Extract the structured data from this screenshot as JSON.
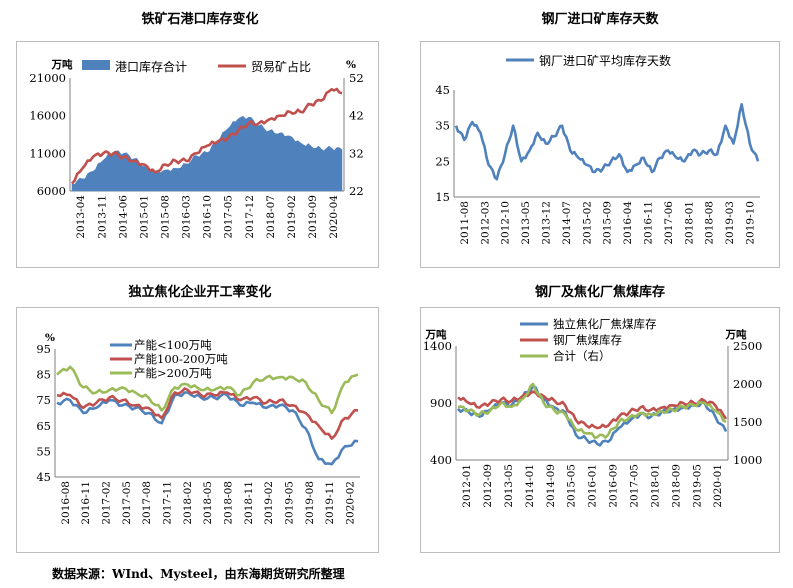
{
  "footer": "数据来源：WInd、Mysteel，由东海期货研究所整理",
  "chart_data": [
    {
      "type": "area",
      "title": "铁矿石港口库存变化",
      "y_unit_left": "万吨",
      "y_unit_right": "%",
      "ylim_left": [
        6000,
        21000
      ],
      "yticks_left": [
        "6000",
        "11000",
        "16000",
        "21000"
      ],
      "ylim_right": [
        22,
        52
      ],
      "yticks_right": [
        "22",
        "32",
        "42",
        "52"
      ],
      "xticks": [
        "2013-04",
        "2013-11",
        "2014-06",
        "2015-01",
        "2015-08",
        "2016-03",
        "2016-10",
        "2017-05",
        "2017-12",
        "2018-07",
        "2019-02",
        "2019-09",
        "2020-04"
      ],
      "legend_position": "top",
      "series": [
        {
          "name": "港口库存合计",
          "axis": "left",
          "color": "#4f81bd",
          "kind": "area",
          "values": [
            7000,
            7600,
            8600,
            10100,
            11200,
            11000,
            10300,
            9300,
            8600,
            8800,
            9000,
            9600,
            10700,
            11100,
            12700,
            14300,
            15600,
            15800,
            14700,
            14000,
            13700,
            13300,
            12400,
            12000,
            11600,
            11700,
            11500
          ]
        },
        {
          "name": "贸易矿占比",
          "axis": "right",
          "color": "#c0504d",
          "kind": "line",
          "values": [
            24,
            28,
            31,
            32,
            32,
            31,
            30,
            29,
            27,
            29,
            30,
            30,
            32,
            34,
            35,
            36,
            38,
            40,
            40,
            41,
            42,
            43,
            43,
            45,
            46,
            49,
            48
          ]
        }
      ]
    },
    {
      "type": "line",
      "title": "钢厂进口矿库存天数",
      "ylim": [
        15,
        45
      ],
      "yticks": [
        "15",
        "25",
        "35",
        "45"
      ],
      "xticks": [
        "2011-08",
        "2012-03",
        "2012-10",
        "2013-05",
        "2013-12",
        "2014-07",
        "2015-02",
        "2015-09",
        "2016-04",
        "2016-11",
        "2017-06",
        "2018-01",
        "2018-08",
        "2019-03",
        "2019-10"
      ],
      "legend_position": "top",
      "series": [
        {
          "name": "钢厂进口矿平均库存天数",
          "color": "#4f81bd",
          "values": [
            35,
            31,
            36,
            33,
            24,
            20,
            27,
            35,
            25,
            28,
            33,
            30,
            32,
            35,
            28,
            26,
            24,
            22,
            23,
            25,
            27,
            22,
            24,
            26,
            22,
            26,
            28,
            26,
            25,
            28,
            27,
            28,
            27,
            35,
            30,
            41,
            30,
            25
          ]
        }
      ]
    },
    {
      "type": "line",
      "title": "独立焦化企业开工率变化",
      "y_unit": "%",
      "ylim": [
        45,
        95
      ],
      "yticks": [
        "45",
        "55",
        "65",
        "75",
        "85",
        "95"
      ],
      "xticks": [
        "2016-08",
        "2016-11",
        "2017-02",
        "2017-05",
        "2017-08",
        "2017-11",
        "2018-02",
        "2018-05",
        "2018-08",
        "2018-11",
        "2019-02",
        "2019-05",
        "2019-08",
        "2019-11",
        "2020-02"
      ],
      "legend_position": "top-left",
      "series": [
        {
          "name": "产能<100万吨",
          "color": "#4f81bd",
          "values": [
            74,
            75,
            70,
            72,
            75,
            73,
            72,
            70,
            66,
            77,
            78,
            76,
            76,
            77,
            73,
            74,
            72,
            73,
            71,
            64,
            52,
            50,
            57,
            59
          ]
        },
        {
          "name": "产能100-200万吨",
          "color": "#c0504d",
          "values": [
            77,
            77,
            72,
            74,
            76,
            75,
            73,
            72,
            68,
            78,
            79,
            77,
            77,
            78,
            75,
            76,
            74,
            75,
            73,
            70,
            65,
            60,
            68,
            71
          ]
        },
        {
          "name": "产能>200万吨",
          "color": "#9bbb59",
          "values": [
            85,
            88,
            80,
            78,
            79,
            80,
            78,
            76,
            71,
            80,
            81,
            79,
            79,
            80,
            77,
            82,
            84,
            84,
            84,
            82,
            75,
            70,
            82,
            85
          ]
        }
      ]
    },
    {
      "type": "line",
      "title": "钢厂及焦化厂焦煤库存",
      "y_unit_left": "万吨",
      "y_unit_right": "万吨",
      "ylim_left": [
        400,
        1400
      ],
      "yticks_left": [
        "400",
        "900",
        "1400"
      ],
      "ylim_right": [
        1000,
        2500
      ],
      "yticks_right": [
        "1000",
        "1500",
        "2000",
        "2500"
      ],
      "xticks": [
        "2012-01",
        "2012-09",
        "2013-05",
        "2014-01",
        "2014-09",
        "2015-05",
        "2016-01",
        "2016-09",
        "2017-05",
        "2018-01",
        "2018-09",
        "2019-05",
        "2020-01"
      ],
      "legend_position": "top",
      "series": [
        {
          "name": "独立焦化厂焦煤库存",
          "axis": "left",
          "color": "#4f81bd",
          "values": [
            850,
            820,
            780,
            840,
            900,
            880,
            950,
            1050,
            930,
            860,
            820,
            620,
            580,
            540,
            560,
            680,
            740,
            800,
            780,
            820,
            840,
            860,
            880,
            900,
            780,
            650
          ]
        },
        {
          "name": "钢厂焦煤库存",
          "axis": "left",
          "color": "#c0504d",
          "values": [
            950,
            900,
            860,
            900,
            930,
            920,
            960,
            1000,
            960,
            920,
            880,
            750,
            700,
            680,
            700,
            780,
            820,
            860,
            840,
            860,
            880,
            900,
            900,
            920,
            880,
            760
          ]
        },
        {
          "name": "合计（右）",
          "axis": "right",
          "color": "#9bbb59",
          "values": [
            1700,
            1650,
            1600,
            1650,
            1750,
            1700,
            1800,
            2000,
            1750,
            1650,
            1600,
            1400,
            1350,
            1300,
            1330,
            1500,
            1560,
            1620,
            1600,
            1640,
            1660,
            1700,
            1720,
            1750,
            1650,
            1500
          ]
        }
      ]
    }
  ]
}
